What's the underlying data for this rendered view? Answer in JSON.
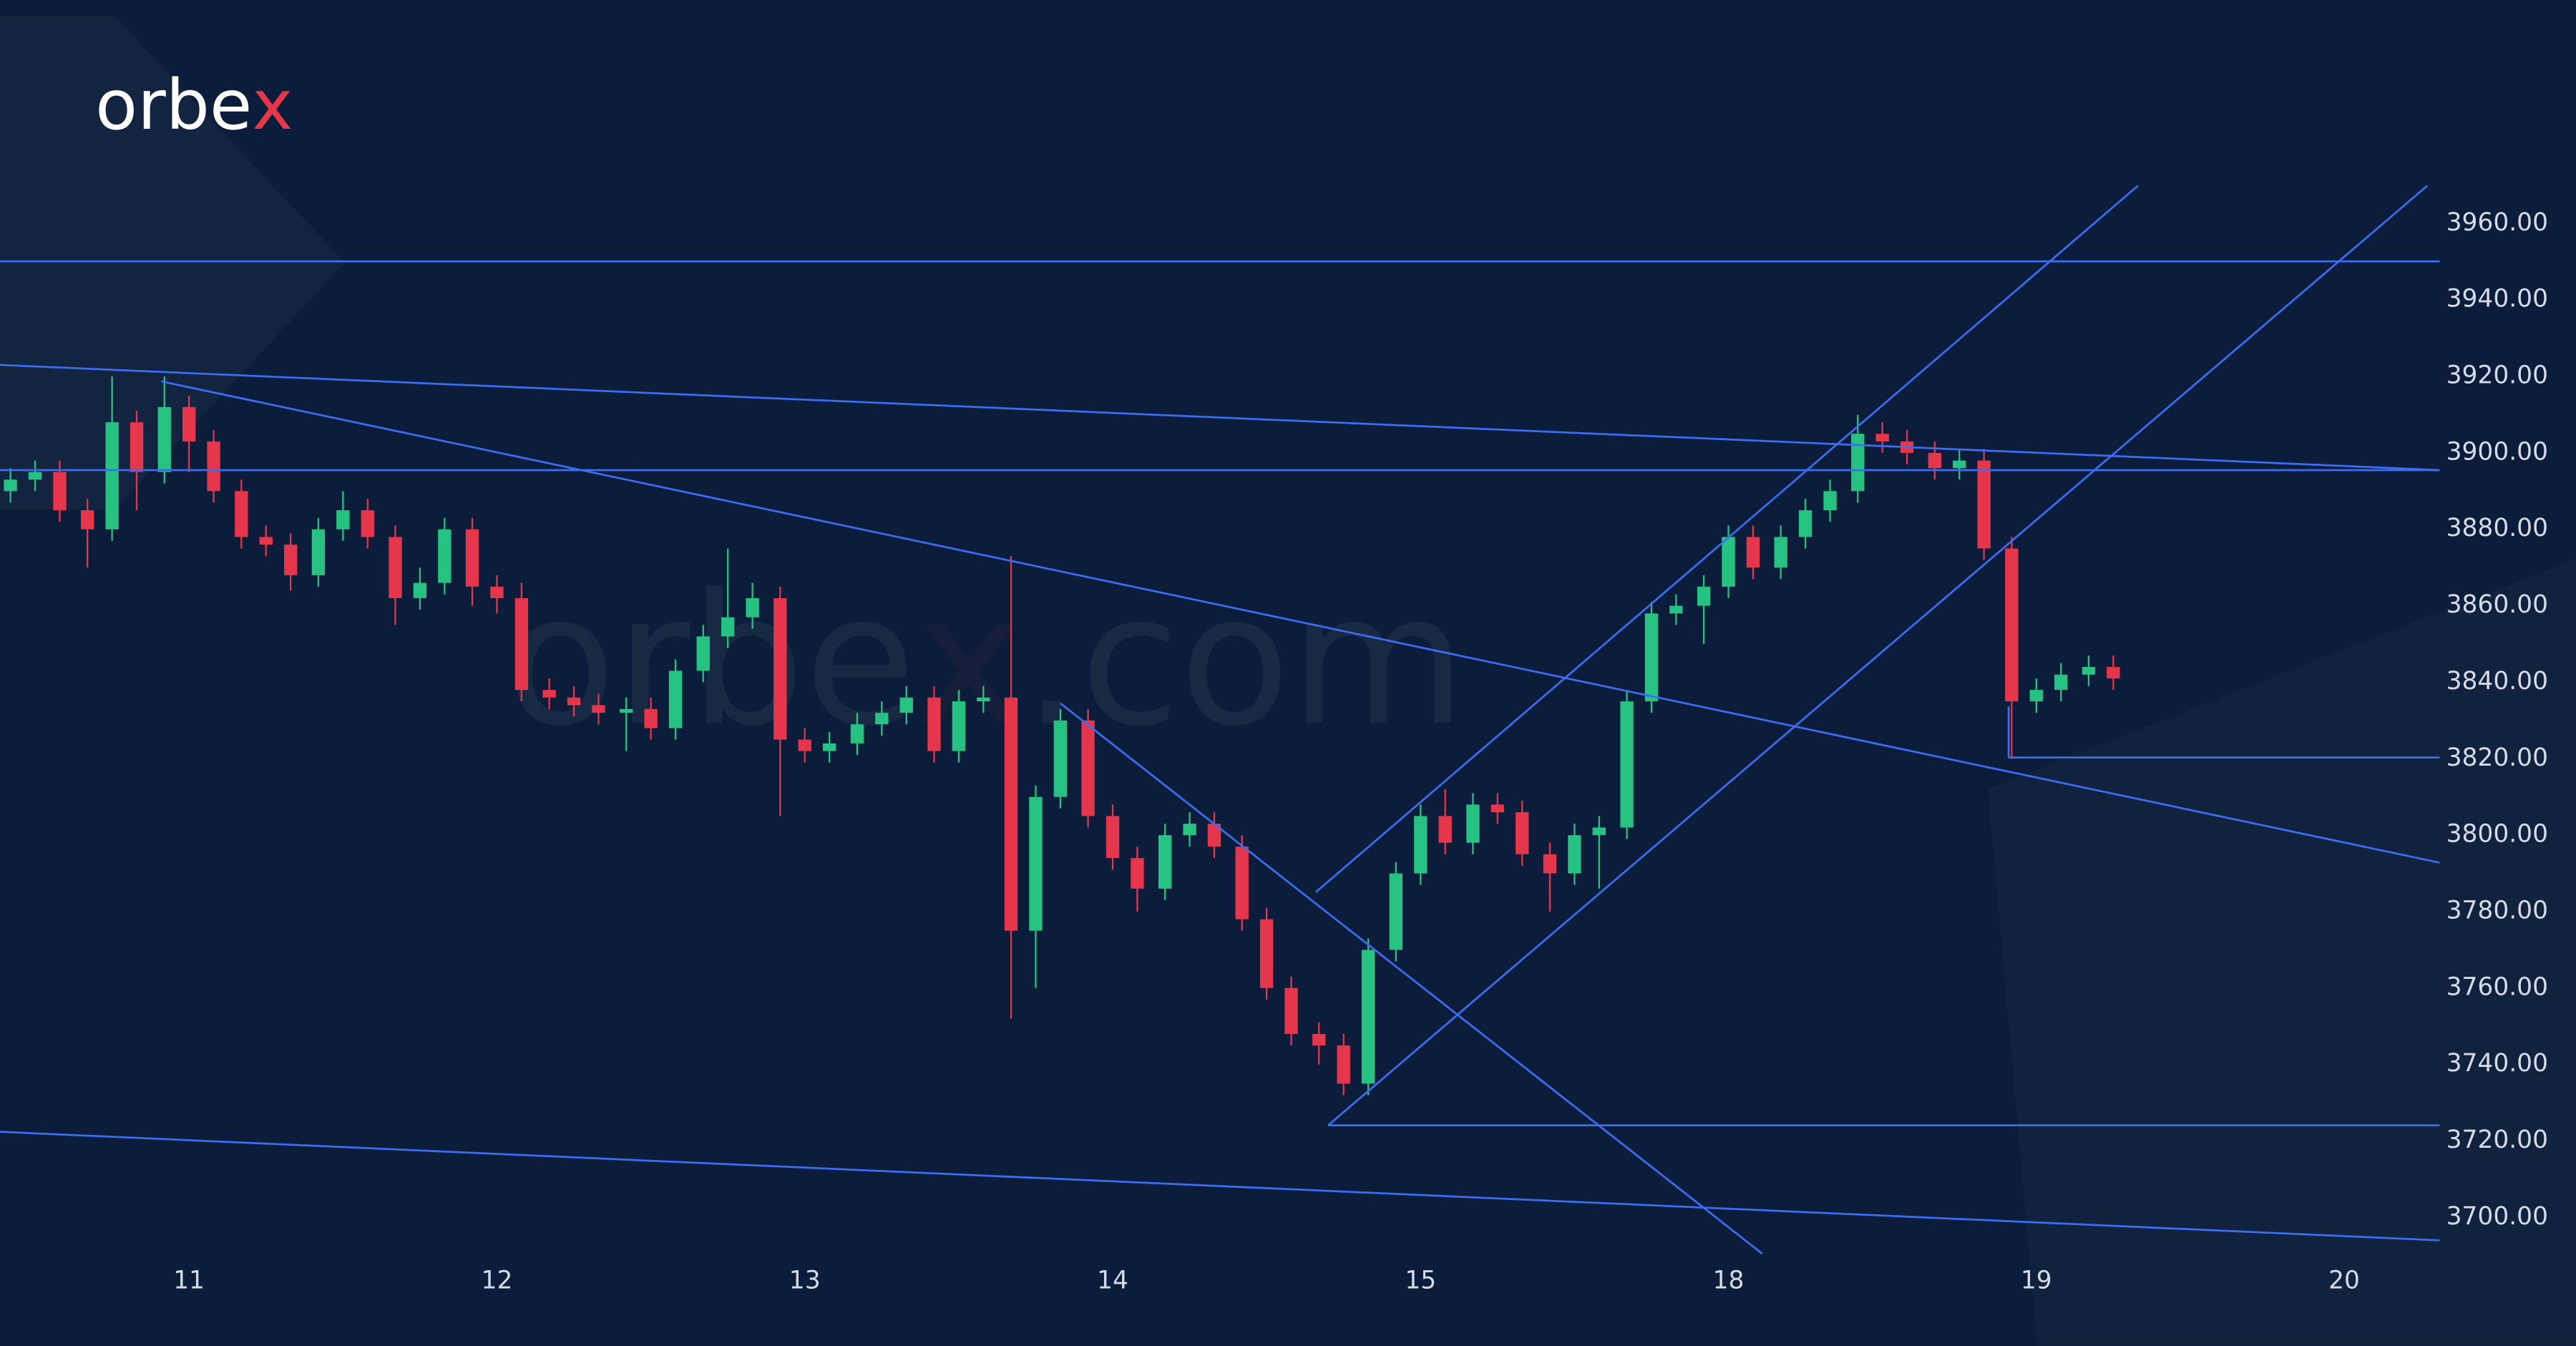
{
  "chart_data": {
    "type": "candlestick",
    "logo": "orbe",
    "logo_accent": "x",
    "watermark": "orbe",
    "watermark_accent": "x",
    "watermark_tail": ".com",
    "up_color": "#26c281",
    "down_color": "#e5364c",
    "line_color": "#3c6cf0",
    "xlim": [
      -0.614,
      7.31
    ],
    "ylim": [
      3689.7,
      3975.5
    ],
    "xticks": [
      {
        "value": 0,
        "label": "11"
      },
      {
        "value": 1,
        "label": "12"
      },
      {
        "value": 2,
        "label": "13"
      },
      {
        "value": 3,
        "label": "14"
      },
      {
        "value": 4,
        "label": "15"
      },
      {
        "value": 5,
        "label": "18"
      },
      {
        "value": 6,
        "label": "19"
      },
      {
        "value": 7,
        "label": "20"
      }
    ],
    "yticks": [
      {
        "value": 3700,
        "label": "3700.00"
      },
      {
        "value": 3720,
        "label": "3720.00"
      },
      {
        "value": 3740,
        "label": "3740.00"
      },
      {
        "value": 3760,
        "label": "3760.00"
      },
      {
        "value": 3780,
        "label": "3780.00"
      },
      {
        "value": 3800,
        "label": "3800.00"
      },
      {
        "value": 3820,
        "label": "3820.00"
      },
      {
        "value": 3840,
        "label": "3840.00"
      },
      {
        "value": 3860,
        "label": "3860.00"
      },
      {
        "value": 3880,
        "label": "3880.00"
      },
      {
        "value": 3900,
        "label": "3900.00"
      },
      {
        "value": 3920,
        "label": "3920.00"
      },
      {
        "value": 3940,
        "label": "3940.00"
      },
      {
        "value": 3960,
        "label": "3960.00"
      }
    ],
    "x": [
      -0.58,
      -0.5,
      -0.42,
      -0.33,
      -0.25,
      -0.17,
      -0.08,
      0,
      0.08,
      0.17,
      0.25,
      0.33,
      0.42,
      0.5,
      0.58,
      0.67,
      0.75,
      0.83,
      0.92,
      1,
      1.08,
      1.17,
      1.25,
      1.33,
      1.42,
      1.5,
      1.58,
      1.67,
      1.75,
      1.83,
      1.92,
      2,
      2.08,
      2.17,
      2.25,
      2.33,
      2.42,
      2.5,
      2.58,
      2.67,
      2.75,
      2.83,
      2.92,
      3,
      3.08,
      3.17,
      3.25,
      3.33,
      3.42,
      3.5,
      3.58,
      3.67,
      3.75,
      3.83,
      3.92,
      4,
      4.08,
      4.17,
      4.25,
      4.33,
      4.42,
      4.5,
      4.58,
      4.67,
      4.75,
      4.83,
      4.92,
      5,
      5.08,
      5.17,
      5.25,
      5.33,
      5.42,
      5.5,
      5.58,
      5.67,
      5.75,
      5.83,
      5.92,
      6,
      6.08,
      6.17,
      6.25
    ],
    "open": [
      3890,
      3893,
      3895,
      3885,
      3880,
      3908,
      3895,
      3912,
      3903,
      3890,
      3878,
      3876,
      3868,
      3880,
      3885,
      3878,
      3862,
      3866,
      3880,
      3865,
      3862,
      3838,
      3836,
      3834,
      3832,
      3833,
      3828,
      3843,
      3852,
      3857,
      3862,
      3825,
      3822,
      3824,
      3829,
      3832,
      3836,
      3822,
      3835,
      3836,
      3775,
      3810,
      3830,
      3805,
      3794,
      3786,
      3800,
      3803,
      3797,
      3778,
      3760,
      3748,
      3745,
      3735,
      3770,
      3790,
      3805,
      3798,
      3808,
      3806,
      3795,
      3790,
      3800,
      3802,
      3835,
      3858,
      3860,
      3865,
      3878,
      3870,
      3878,
      3885,
      3890,
      3905,
      3903,
      3900,
      3896,
      3898,
      3875,
      3835,
      3838,
      3842,
      3844
    ],
    "high": [
      3896,
      3898,
      3898,
      3888,
      3920,
      3911,
      3920,
      3915,
      3906,
      3893,
      3881,
      3879,
      3883,
      3890,
      3888,
      3881,
      3870,
      3883,
      3883,
      3868,
      3866,
      3841,
      3839,
      3837,
      3836,
      3836,
      3846,
      3855,
      3875,
      3866,
      3865,
      3828,
      3827,
      3832,
      3835,
      3839,
      3839,
      3838,
      3839,
      3873,
      3813,
      3833,
      3833,
      3808,
      3797,
      3803,
      3806,
      3806,
      3800,
      3781,
      3763,
      3751,
      3748,
      3773,
      3793,
      3808,
      3812,
      3811,
      3811,
      3809,
      3798,
      3803,
      3805,
      3838,
      3861,
      3863,
      3868,
      3881,
      3881,
      3881,
      3888,
      3893,
      3910,
      3908,
      3906,
      3903,
      3901,
      3901,
      3878,
      3841,
      3845,
      3847,
      3847
    ],
    "low": [
      3887,
      3890,
      3882,
      3870,
      3877,
      3885,
      3892,
      3895,
      3887,
      3875,
      3873,
      3864,
      3865,
      3877,
      3875,
      3855,
      3859,
      3863,
      3860,
      3858,
      3835,
      3833,
      3831,
      3829,
      3822,
      3825,
      3825,
      3840,
      3849,
      3854,
      3805,
      3819,
      3819,
      3821,
      3826,
      3829,
      3819,
      3819,
      3832,
      3752,
      3760,
      3807,
      3802,
      3791,
      3780,
      3783,
      3797,
      3794,
      3775,
      3757,
      3745,
      3740,
      3732,
      3732,
      3767,
      3787,
      3795,
      3795,
      3803,
      3792,
      3780,
      3787,
      3786,
      3799,
      3832,
      3855,
      3850,
      3862,
      3867,
      3867,
      3875,
      3882,
      3887,
      3900,
      3897,
      3893,
      3893,
      3872,
      3820,
      3832,
      3835,
      3839,
      3838
    ],
    "close": [
      3893,
      3895,
      3885,
      3880,
      3908,
      3895,
      3912,
      3903,
      3890,
      3878,
      3876,
      3868,
      3880,
      3885,
      3878,
      3862,
      3866,
      3880,
      3865,
      3862,
      3838,
      3836,
      3834,
      3832,
      3833,
      3828,
      3843,
      3852,
      3857,
      3862,
      3825,
      3822,
      3824,
      3829,
      3832,
      3836,
      3822,
      3835,
      3836,
      3775,
      3810,
      3830,
      3805,
      3794,
      3786,
      3800,
      3803,
      3797,
      3778,
      3760,
      3748,
      3745,
      3735,
      3770,
      3790,
      3805,
      3798,
      3808,
      3806,
      3795,
      3790,
      3800,
      3802,
      3835,
      3858,
      3860,
      3865,
      3878,
      3870,
      3878,
      3885,
      3890,
      3905,
      3903,
      3900,
      3896,
      3898,
      3875,
      3835,
      3838,
      3842,
      3844,
      3841
    ],
    "trendlines": [
      {
        "x": [
          -0.614,
          7.31
        ],
        "y": [
          3950.1,
          3950.1
        ]
      },
      {
        "x": [
          -0.614,
          7.31
        ],
        "y": [
          3895.5,
          3895.5
        ]
      },
      {
        "x": [
          -0.614,
          7.31
        ],
        "y": [
          3923,
          3895.5
        ]
      },
      {
        "x": [
          -0.09,
          7.31
        ],
        "y": [
          3918.7,
          3792.8
        ]
      },
      {
        "x": [
          -0.614,
          7.31
        ],
        "y": [
          3722.4,
          3694
        ]
      },
      {
        "x": [
          2.83,
          5.11
        ],
        "y": [
          3834.5,
          3690.5
        ]
      },
      {
        "x": [
          3.66,
          6.33
        ],
        "y": [
          3785.1,
          3969.9
        ]
      },
      {
        "x": [
          3.7,
          7.27
        ],
        "y": [
          3724.1,
          3969.9
        ]
      },
      {
        "x": [
          3.7,
          7.31
        ],
        "y": [
          3724.1,
          3724.1
        ]
      },
      {
        "x": [
          5.91,
          7.31
        ],
        "y": [
          3820.3,
          3820.3
        ]
      },
      {
        "x": [
          5.91,
          5.91
        ],
        "y": [
          3833.7,
          3820.3
        ]
      }
    ]
  }
}
